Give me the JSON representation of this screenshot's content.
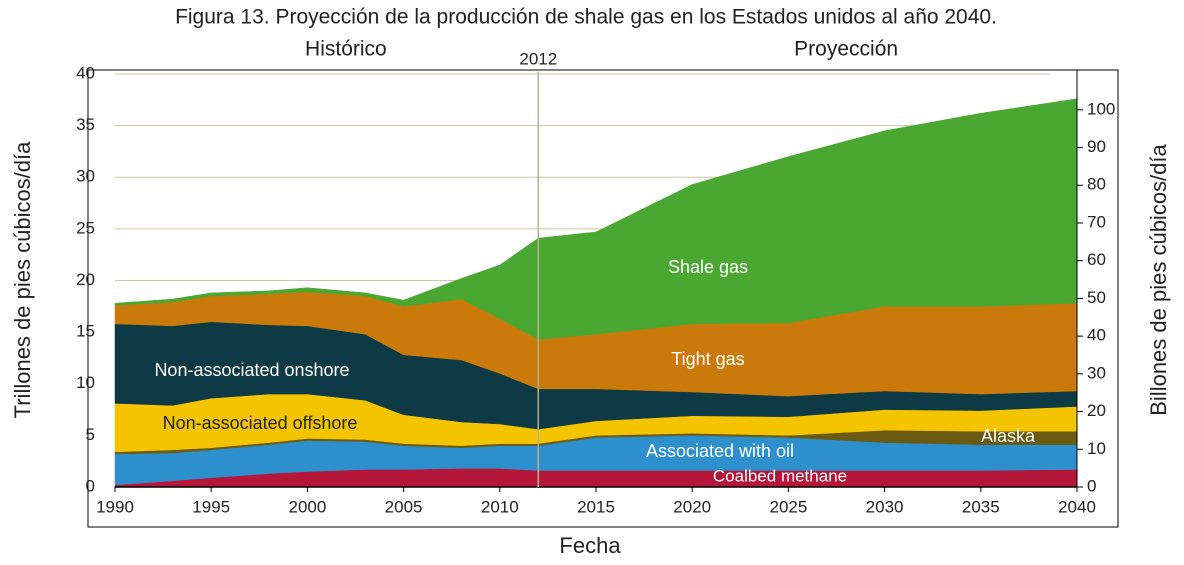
{
  "chart_data": {
    "type": "stacked-area",
    "title": "Figura 13. Proyección de la producción de shale gas en los Estados unidos al año 2040.",
    "xlabel": "Fecha",
    "ylabel": "Trillones de pies cúbicos/día",
    "y2label": "Billones de pies cúbicos/día",
    "annotations": [
      {
        "text": "Histórico",
        "x": 2002
      },
      {
        "text": "2012",
        "x": 2012
      },
      {
        "text": "Proyección",
        "x": 2028
      }
    ],
    "x": [
      1990,
      1993,
      1995,
      1998,
      2000,
      2003,
      2005,
      2008,
      2010,
      2012,
      2015,
      2020,
      2025,
      2030,
      2035,
      2040
    ],
    "series": [
      {
        "name": "Coalbed methane",
        "color": "#b5173a",
        "values": [
          0.2,
          0.6,
          0.9,
          1.3,
          1.5,
          1.7,
          1.7,
          1.8,
          1.8,
          1.6,
          1.6,
          1.6,
          1.6,
          1.6,
          1.6,
          1.7
        ]
      },
      {
        "name": "Associated with oil",
        "color": "#2e8fcd",
        "values": [
          3.0,
          2.7,
          2.7,
          2.8,
          3.0,
          2.7,
          2.3,
          2.0,
          2.2,
          2.4,
          3.2,
          3.4,
          3.2,
          2.7,
          2.5,
          2.4
        ]
      },
      {
        "name": "Alaska",
        "color": "#6b5a12",
        "values": [
          0.2,
          0.3,
          0.2,
          0.2,
          0.2,
          0.2,
          0.2,
          0.2,
          0.2,
          0.2,
          0.2,
          0.2,
          0.2,
          1.2,
          1.3,
          1.3
        ]
      },
      {
        "name": "Non-associated offshore",
        "color": "#f5c400",
        "values": [
          4.7,
          4.3,
          4.8,
          4.7,
          4.3,
          3.8,
          2.8,
          2.3,
          1.9,
          1.4,
          1.4,
          1.7,
          1.8,
          2.0,
          2.0,
          2.4
        ]
      },
      {
        "name": "Non-associated onshore",
        "color": "#0e3a45",
        "values": [
          7.7,
          7.7,
          7.4,
          6.7,
          6.6,
          6.4,
          5.8,
          6.0,
          4.9,
          3.9,
          3.1,
          2.3,
          2.0,
          1.8,
          1.6,
          1.5
        ]
      },
      {
        "name": "Tight gas",
        "color": "#c97a0a",
        "values": [
          1.8,
          2.3,
          2.5,
          3.0,
          3.3,
          3.7,
          4.7,
          5.9,
          5.3,
          4.8,
          5.3,
          6.6,
          7.1,
          8.2,
          8.5,
          8.5
        ]
      },
      {
        "name": "Shale gas",
        "color": "#4aa832",
        "values": [
          0.2,
          0.3,
          0.3,
          0.3,
          0.4,
          0.3,
          0.6,
          2.0,
          5.2,
          9.8,
          9.9,
          13.5,
          16.1,
          17.0,
          18.7,
          19.8
        ]
      }
    ],
    "xlim": [
      1990,
      2040
    ],
    "xticks": [
      1990,
      1995,
      2000,
      2005,
      2010,
      2015,
      2020,
      2025,
      2030,
      2035,
      2040
    ],
    "ylim": [
      0,
      40
    ],
    "yticks": [
      0,
      5,
      10,
      15,
      20,
      25,
      30,
      35,
      40
    ],
    "y2lim": [
      0,
      109.5
    ],
    "y2ticks": [
      0,
      10,
      20,
      30,
      40,
      50,
      60,
      70,
      80,
      90,
      100
    ],
    "grid": true
  }
}
